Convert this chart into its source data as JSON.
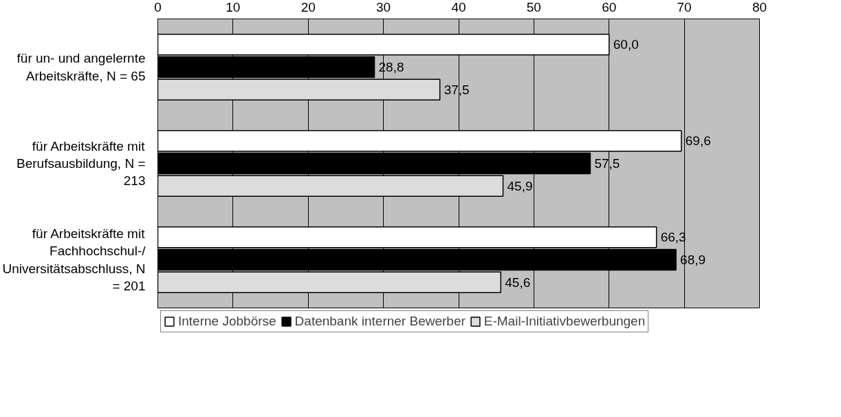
{
  "chart_data": {
    "type": "bar",
    "orientation": "horizontal",
    "categories": [
      "für un- und angelernte Arbeitskräfte, N = 65",
      "für Arbeitskräfte mit Berufsausbildung, N = 213",
      "für Arbeitskräfte mit Fachhochschul-/ Universitätsabschluss, N = 201"
    ],
    "series": [
      {
        "name": "Interne Jobbörse",
        "color": "#ffffff",
        "values": [
          60.0,
          69.6,
          66.3
        ],
        "value_labels": [
          "60,0",
          "69,6",
          "66,3"
        ]
      },
      {
        "name": "Datenbank interner Bewerber",
        "color": "#000000",
        "values": [
          28.8,
          57.5,
          68.9
        ],
        "value_labels": [
          "28,8",
          "57,5",
          "68,9"
        ]
      },
      {
        "name": "E-Mail-Initiativbewerbungen",
        "color": "#dcdcdc",
        "values": [
          37.5,
          45.9,
          45.6
        ],
        "value_labels": [
          "37,5",
          "45,9",
          "45,6"
        ]
      }
    ],
    "xlim": [
      0,
      80
    ],
    "xticks": [
      0,
      10,
      20,
      30,
      40,
      50,
      60,
      70,
      80
    ],
    "grid": "x",
    "legend": "bottom"
  }
}
